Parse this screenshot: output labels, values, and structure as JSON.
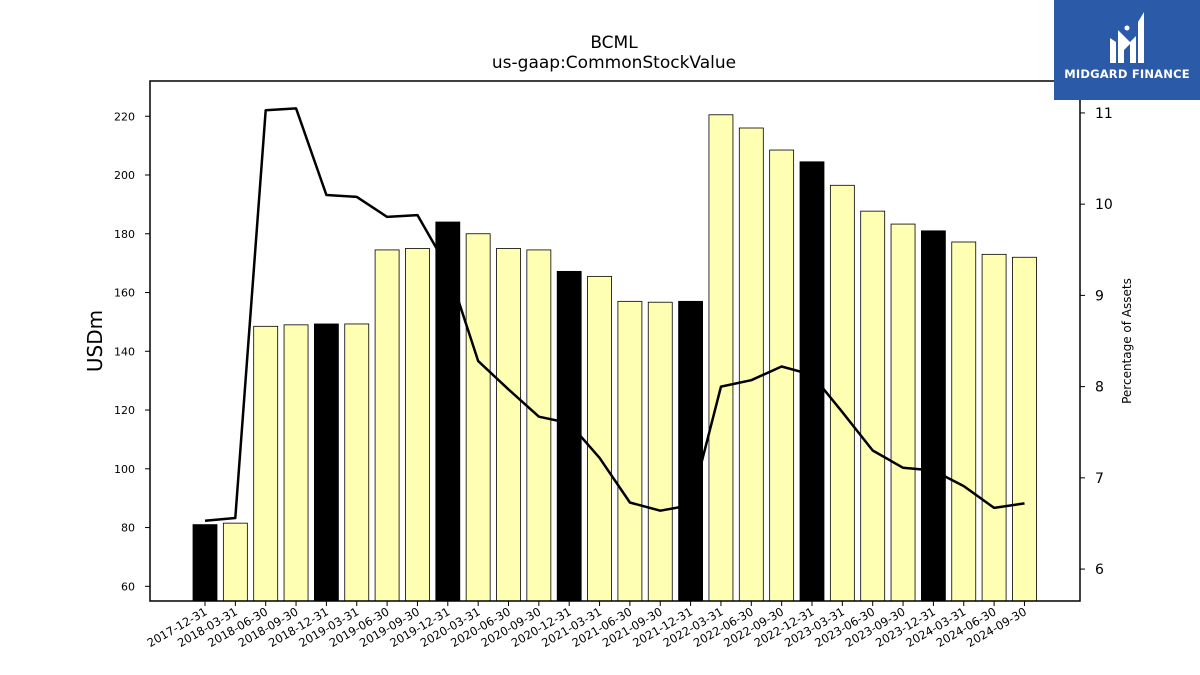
{
  "chart_data": {
    "type": "bar",
    "title": "BCML",
    "subtitle": "us-gaap:CommonStockValue",
    "ylabel": "USDm",
    "y2label": "Percentage of Assets",
    "ylim": [
      55,
      232
    ],
    "y2lim": [
      5.65,
      11.35
    ],
    "yticks": [
      60,
      80,
      100,
      120,
      140,
      160,
      180,
      200,
      220
    ],
    "y2ticks": [
      6,
      7,
      8,
      9,
      10,
      11
    ],
    "categories": [
      "2017-12-31",
      "2018-03-31",
      "2018-06-30",
      "2018-09-30",
      "2018-12-31",
      "2019-03-31",
      "2019-06-30",
      "2019-09-30",
      "2019-12-31",
      "2020-03-31",
      "2020-06-30",
      "2020-09-30",
      "2020-12-31",
      "2021-03-31",
      "2021-06-30",
      "2021-09-30",
      "2021-12-31",
      "2022-03-31",
      "2022-06-30",
      "2022-09-30",
      "2022-12-31",
      "2023-03-31",
      "2023-06-30",
      "2023-09-30",
      "2023-12-31",
      "2024-03-31",
      "2024-06-30",
      "2024-09-30"
    ],
    "series": [
      {
        "kind": "bar",
        "values": [
          81,
          81.5,
          148.5,
          149,
          149.3,
          149.3,
          174.5,
          175,
          184,
          180,
          175,
          174.5,
          167.2,
          165.5,
          157,
          156.7,
          157,
          220.5,
          216,
          208.5,
          204.5,
          196.5,
          187.7,
          183.3,
          181,
          177.2,
          173,
          172
        ],
        "highlight": [
          true,
          false,
          false,
          false,
          true,
          false,
          false,
          false,
          true,
          false,
          false,
          false,
          true,
          false,
          false,
          false,
          true,
          false,
          false,
          false,
          true,
          false,
          false,
          false,
          true,
          false,
          false,
          false
        ],
        "color": "#ffffb3",
        "highlight_color": "#000000"
      },
      {
        "kind": "line",
        "axis": "right",
        "values": [
          6.53,
          6.56,
          11.03,
          11.05,
          10.1,
          10.08,
          9.86,
          9.88,
          9.3,
          8.28,
          7.97,
          7.67,
          7.6,
          7.22,
          6.73,
          6.64,
          6.7,
          8.0,
          8.07,
          8.22,
          8.13,
          7.72,
          7.3,
          7.11,
          7.08,
          6.91,
          6.67,
          6.72
        ],
        "color": "#000000"
      }
    ],
    "grid": false,
    "legend": "none"
  },
  "logo": {
    "text": "MIDGARD FINANCE",
    "background": "#2a5aa8"
  }
}
